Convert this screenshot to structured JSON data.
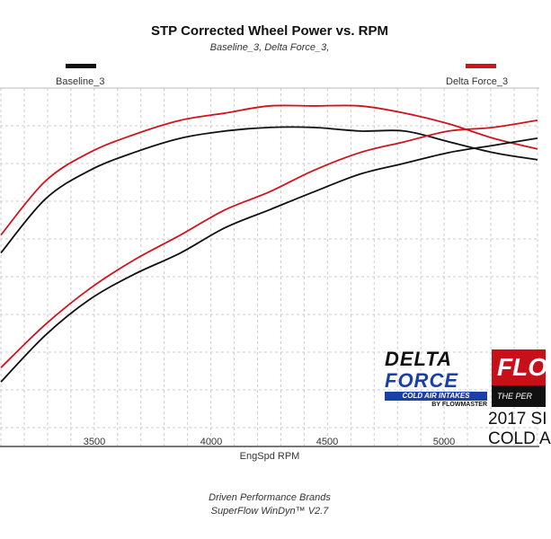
{
  "chart_data": {
    "type": "line",
    "title": "STP Corrected Wheel Power vs. RPM",
    "subtitle": "Baseline_3, Delta Force_3,",
    "xlabel": "EngSpd  RPM",
    "ylabel": "",
    "xlim": [
      3096,
      5408
    ],
    "ylim": [
      0,
      100
    ],
    "x_ticks": [
      "3500",
      "4000",
      "4500",
      "5000"
    ],
    "grid": true,
    "legend": [
      "Baseline_3",
      "Delta Force_3"
    ],
    "x": [
      3100,
      3290,
      3480,
      3670,
      3870,
      4060,
      4250,
      4440,
      4640,
      4830,
      5020,
      5210,
      5400
    ],
    "series": [
      {
        "name": "Delta Force_3",
        "color": "#d0141c",
        "values": [
          59,
          74,
          82,
          87,
          91,
          93,
          95,
          95,
          95,
          93,
          90,
          86,
          83
        ]
      },
      {
        "name": "Baseline_3",
        "color": "#111111",
        "values": [
          54,
          69,
          77,
          82,
          86,
          88,
          89,
          89,
          88,
          88,
          85,
          82,
          80
        ]
      },
      {
        "name": "Delta Force_3",
        "color": "#d0141c",
        "values": [
          22,
          34,
          44,
          52,
          59,
          66,
          71,
          77,
          82,
          85,
          88,
          89,
          91
        ]
      },
      {
        "name": "Baseline_3",
        "color": "#111111",
        "values": [
          18,
          31,
          41,
          48,
          54,
          61,
          66,
          71,
          76,
          79,
          82,
          84,
          86
        ]
      }
    ]
  },
  "footer": {
    "line1": "Driven Performance Brands",
    "line2": "SuperFlow WinDyn™  V2.7"
  },
  "logos": {
    "delta_force": {
      "line1": "DELTA",
      "line2": "FORCE",
      "line3": "COLD AIR INTAKES",
      "line4": "BY FLOWMASTER"
    },
    "flowmaster": {
      "text": "FLO",
      "tagline": "THE PER"
    }
  },
  "caption": {
    "line1": "2017 SI",
    "line2": "COLD A"
  }
}
